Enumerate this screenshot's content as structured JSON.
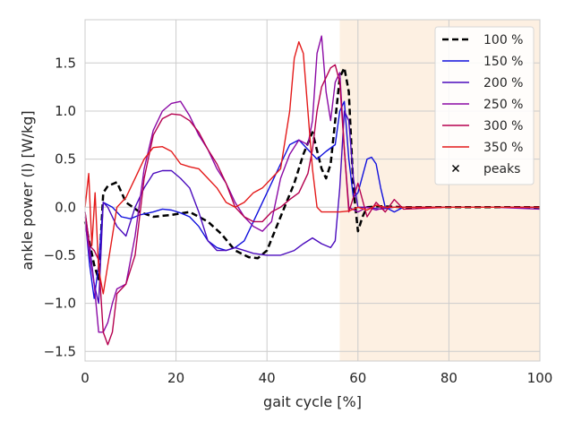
{
  "chart_data": {
    "type": "line",
    "title": "",
    "xlabel": "gait cycle [%]",
    "ylabel": "ankle power (l) [W/kg]",
    "xlim": [
      0,
      100
    ],
    "ylim": [
      -1.6,
      1.95
    ],
    "xticks": [
      0,
      20,
      40,
      60,
      80,
      100
    ],
    "yticks": [
      -1.5,
      -1.0,
      -0.5,
      0.0,
      0.5,
      1.0,
      1.5
    ],
    "ytick_labels": [
      "−1.5",
      "−1.0",
      "−0.5",
      "0.0",
      "0.5",
      "1.0",
      "1.5"
    ],
    "grid": true,
    "legend_position": "top-right",
    "shaded_region": {
      "x_start": 56,
      "x_end": 100,
      "color": "#fdf0e2"
    },
    "series": [
      {
        "name": "100 %",
        "color": "#000000",
        "dashed": true,
        "x": [
          0,
          2,
          3,
          4,
          5,
          7,
          9,
          12,
          15,
          19,
          23,
          27,
          30,
          33,
          36,
          38,
          40,
          43,
          46,
          48,
          50,
          52,
          53,
          54,
          56,
          57,
          58,
          59,
          60,
          61,
          62,
          65,
          70,
          80,
          90,
          100
        ],
        "y": [
          -0.15,
          -0.6,
          -0.75,
          0.15,
          0.22,
          0.26,
          0.05,
          -0.05,
          -0.1,
          -0.08,
          -0.05,
          -0.15,
          -0.28,
          -0.45,
          -0.52,
          -0.53,
          -0.45,
          -0.1,
          0.25,
          0.55,
          0.78,
          0.4,
          0.3,
          0.45,
          1.35,
          1.45,
          1.2,
          0.2,
          -0.25,
          -0.1,
          0.0,
          0.01,
          0.0,
          0.0,
          0.0,
          0.0
        ]
      },
      {
        "name": "150 %",
        "color": "#1010dd",
        "dashed": false,
        "x": [
          0,
          1,
          2,
          3,
          4,
          6,
          8,
          10,
          12,
          15,
          17,
          19,
          21,
          23,
          25,
          27,
          29,
          31,
          33,
          35,
          37,
          40,
          43,
          45,
          47,
          49,
          51,
          53,
          55,
          56,
          57,
          58,
          59,
          60,
          62,
          63,
          64,
          65,
          66,
          68,
          70,
          80,
          90,
          100
        ],
        "y": [
          -0.1,
          -0.6,
          -0.95,
          -0.6,
          0.05,
          0.0,
          -0.1,
          -0.12,
          -0.08,
          -0.05,
          -0.02,
          -0.03,
          -0.06,
          -0.1,
          -0.2,
          -0.35,
          -0.42,
          -0.45,
          -0.42,
          -0.35,
          -0.15,
          0.15,
          0.45,
          0.65,
          0.7,
          0.6,
          0.5,
          0.58,
          0.65,
          1.0,
          1.1,
          0.5,
          0.1,
          0.15,
          0.5,
          0.52,
          0.45,
          0.2,
          0.0,
          -0.05,
          0.0,
          0.0,
          0.0,
          0.0
        ]
      },
      {
        "name": "200 %",
        "color": "#4b0bbd",
        "dashed": false,
        "x": [
          0,
          1,
          2,
          3,
          4,
          5,
          7,
          9,
          11,
          13,
          15,
          17,
          19,
          21,
          23,
          25,
          27,
          29,
          31,
          33,
          35,
          37,
          40,
          43,
          46,
          48,
          50,
          52,
          54,
          55,
          56,
          57,
          58,
          59,
          60,
          62,
          65,
          68,
          70,
          80,
          90,
          100
        ],
        "y": [
          -0.05,
          -0.4,
          -0.8,
          -1.0,
          0.05,
          0.0,
          -0.2,
          -0.3,
          0.0,
          0.2,
          0.35,
          0.38,
          0.38,
          0.3,
          0.2,
          -0.05,
          -0.35,
          -0.45,
          -0.45,
          -0.42,
          -0.45,
          -0.48,
          -0.5,
          -0.5,
          -0.45,
          -0.38,
          -0.32,
          -0.38,
          -0.42,
          -0.35,
          0.2,
          1.0,
          0.9,
          0.3,
          0.0,
          0.0,
          -0.02,
          0.0,
          0.0,
          0.0,
          0.0,
          0.0
        ]
      },
      {
        "name": "250 %",
        "color": "#8b0aa5",
        "dashed": false,
        "x": [
          0,
          1,
          2,
          3,
          4,
          5,
          6,
          7,
          9,
          11,
          13,
          15,
          17,
          19,
          21,
          23,
          25,
          27,
          29,
          31,
          33,
          35,
          37,
          39,
          41,
          43,
          45,
          47,
          49,
          50,
          51,
          52,
          53,
          54,
          55,
          56,
          57,
          58,
          60,
          62,
          64,
          66,
          68,
          70,
          80,
          90,
          100
        ],
        "y": [
          -0.15,
          -0.5,
          -0.8,
          -1.3,
          -1.3,
          -1.2,
          -1.0,
          -0.85,
          -0.8,
          -0.3,
          0.4,
          0.8,
          1.0,
          1.08,
          1.1,
          0.95,
          0.75,
          0.6,
          0.4,
          0.25,
          0.05,
          -0.1,
          -0.2,
          -0.25,
          -0.15,
          0.3,
          0.55,
          0.7,
          0.65,
          0.9,
          1.6,
          1.78,
          1.2,
          0.9,
          1.3,
          1.4,
          0.6,
          0.0,
          -0.05,
          0.0,
          -0.03,
          0.0,
          0.0,
          0.0,
          0.0,
          0.0,
          -0.02
        ]
      },
      {
        "name": "300 %",
        "color": "#b5004f",
        "dashed": false,
        "x": [
          0,
          1,
          2,
          3,
          4,
          5,
          6,
          7,
          9,
          11,
          13,
          15,
          17,
          19,
          21,
          23,
          25,
          27,
          29,
          31,
          33,
          35,
          37,
          39,
          41,
          43,
          45,
          47,
          49,
          50,
          51,
          52,
          53,
          54,
          55,
          56,
          57,
          58,
          60,
          62,
          64,
          66,
          68,
          70,
          80,
          90,
          100
        ],
        "y": [
          -0.05,
          -0.4,
          -0.45,
          -0.55,
          -1.3,
          -1.43,
          -1.3,
          -0.9,
          -0.8,
          -0.5,
          0.3,
          0.75,
          0.92,
          0.97,
          0.96,
          0.9,
          0.78,
          0.6,
          0.45,
          0.25,
          0.0,
          -0.1,
          -0.15,
          -0.15,
          -0.05,
          0.0,
          0.08,
          0.15,
          0.35,
          0.6,
          1.0,
          1.25,
          1.35,
          1.45,
          1.48,
          1.3,
          0.6,
          -0.05,
          0.25,
          -0.1,
          0.05,
          -0.05,
          0.08,
          -0.02,
          0.0,
          0.0,
          0.0
        ]
      },
      {
        "name": "350 %",
        "color": "#e41a1a",
        "dashed": false,
        "x": [
          0,
          0.8,
          1.5,
          2.2,
          3,
          4,
          5,
          6,
          7,
          9,
          11,
          13,
          15,
          17,
          19,
          21,
          23,
          25,
          27,
          29,
          31,
          33,
          35,
          37,
          39,
          41,
          43,
          45,
          46,
          47,
          48,
          49,
          50,
          51,
          52,
          54,
          56,
          58,
          60,
          62,
          64,
          66,
          68,
          70,
          80,
          90,
          100
        ],
        "y": [
          0.0,
          0.35,
          -0.4,
          0.15,
          -0.65,
          -0.9,
          -0.6,
          -0.3,
          0.0,
          0.1,
          0.3,
          0.5,
          0.62,
          0.63,
          0.58,
          0.45,
          0.42,
          0.4,
          0.3,
          0.2,
          0.05,
          0.0,
          0.05,
          0.15,
          0.2,
          0.3,
          0.4,
          1.0,
          1.55,
          1.72,
          1.6,
          1.0,
          0.4,
          0.0,
          -0.05,
          -0.05,
          -0.05,
          -0.04,
          0.0,
          -0.03,
          0.02,
          0.0,
          0.0,
          0.0,
          0.0,
          0.0,
          0.0
        ]
      }
    ],
    "peaks_legend": {
      "name": "peaks",
      "marker": "x",
      "color": "#000000"
    }
  }
}
